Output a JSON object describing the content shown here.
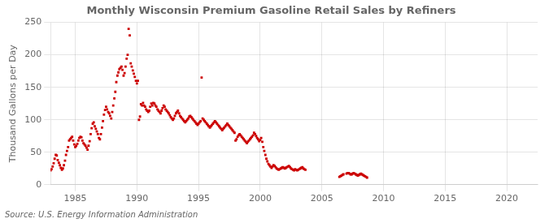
{
  "chart_data": {
    "type": "scatter",
    "title": "Monthly Wisconsin Premium Gasoline Retail Sales by Refiners",
    "y_label": "Thousand Gallons per Day",
    "annotations": [
      "Source: U.S. Energy Information Administration"
    ],
    "color": "#cc0000",
    "marker": "square",
    "grid": true,
    "xlim": [
      1983.0,
      2022.5
    ],
    "ylim": [
      0,
      250
    ],
    "xticks": [
      1985,
      1990,
      1995,
      2000,
      2005,
      2010,
      2015,
      2020
    ],
    "yticks": [
      0,
      50,
      100,
      150,
      200,
      250
    ],
    "x": [
      1983.0,
      1983.08,
      1983.17,
      1983.25,
      1983.33,
      1983.42,
      1983.5,
      1983.58,
      1983.67,
      1983.75,
      1983.83,
      1983.92,
      1984.0,
      1984.08,
      1984.17,
      1984.25,
      1984.33,
      1984.42,
      1984.5,
      1984.58,
      1984.67,
      1984.75,
      1984.83,
      1984.92,
      1985.0,
      1985.08,
      1985.17,
      1985.25,
      1985.33,
      1985.42,
      1985.5,
      1985.58,
      1985.67,
      1985.75,
      1985.83,
      1985.92,
      1986.0,
      1986.08,
      1986.17,
      1986.25,
      1986.33,
      1986.42,
      1986.5,
      1986.58,
      1986.67,
      1986.75,
      1986.83,
      1986.92,
      1987.0,
      1987.08,
      1987.17,
      1987.25,
      1987.33,
      1987.42,
      1987.5,
      1987.58,
      1987.67,
      1987.75,
      1987.83,
      1987.92,
      1988.0,
      1988.08,
      1988.17,
      1988.25,
      1988.33,
      1988.42,
      1988.5,
      1988.58,
      1988.67,
      1988.75,
      1988.83,
      1988.92,
      1989.0,
      1989.08,
      1989.17,
      1989.25,
      1989.33,
      1989.42,
      1989.5,
      1989.58,
      1989.67,
      1989.75,
      1989.83,
      1989.92,
      1990.0,
      1990.08,
      1990.17,
      1990.25,
      1990.33,
      1990.42,
      1990.5,
      1990.58,
      1990.67,
      1990.75,
      1990.83,
      1990.92,
      1991.0,
      1991.08,
      1991.17,
      1991.25,
      1991.33,
      1991.42,
      1991.5,
      1991.58,
      1991.67,
      1991.75,
      1991.83,
      1991.92,
      1992.0,
      1992.08,
      1992.17,
      1992.25,
      1992.33,
      1992.42,
      1992.5,
      1992.58,
      1992.67,
      1992.75,
      1992.83,
      1992.92,
      1993.0,
      1993.08,
      1993.17,
      1993.25,
      1993.33,
      1993.42,
      1993.5,
      1993.58,
      1993.67,
      1993.75,
      1993.83,
      1993.92,
      1994.0,
      1994.08,
      1994.17,
      1994.25,
      1994.33,
      1994.42,
      1994.5,
      1994.58,
      1994.67,
      1994.75,
      1994.83,
      1994.92,
      1995.0,
      1995.08,
      1995.17,
      1995.25,
      1995.33,
      1995.42,
      1995.5,
      1995.58,
      1995.67,
      1995.75,
      1995.83,
      1995.92,
      1996.0,
      1996.08,
      1996.17,
      1996.25,
      1996.33,
      1996.42,
      1996.5,
      1996.58,
      1996.67,
      1996.75,
      1996.83,
      1996.92,
      1997.0,
      1997.08,
      1997.17,
      1997.25,
      1997.33,
      1997.42,
      1997.5,
      1997.58,
      1997.67,
      1997.75,
      1997.83,
      1997.92,
      1998.0,
      1998.08,
      1998.17,
      1998.25,
      1998.33,
      1998.42,
      1998.5,
      1998.58,
      1998.67,
      1998.75,
      1998.83,
      1998.92,
      1999.0,
      1999.08,
      1999.17,
      1999.25,
      1999.33,
      1999.42,
      1999.5,
      1999.58,
      1999.67,
      1999.75,
      1999.83,
      1999.92,
      2000.0,
      2000.08,
      2000.17,
      2000.25,
      2000.33,
      2000.42,
      2000.5,
      2000.58,
      2000.67,
      2000.75,
      2000.83,
      2000.92,
      2001.0,
      2001.08,
      2001.17,
      2001.25,
      2001.33,
      2001.42,
      2001.5,
      2001.58,
      2001.67,
      2001.75,
      2001.83,
      2001.92,
      2002.0,
      2002.08,
      2002.17,
      2002.25,
      2002.33,
      2002.42,
      2002.5,
      2002.58,
      2002.67,
      2002.75,
      2002.83,
      2002.92,
      2003.0,
      2003.08,
      2003.17,
      2003.25,
      2003.33,
      2003.42,
      2003.5,
      2003.58,
      2003.67,
      2006.42,
      2006.5,
      2006.58,
      2006.67,
      2006.75,
      2007.0,
      2007.08,
      2007.17,
      2007.25,
      2007.33,
      2007.42,
      2007.5,
      2007.58,
      2007.67,
      2007.75,
      2007.83,
      2007.92,
      2008.0,
      2008.08,
      2008.17,
      2008.25,
      2008.33,
      2008.42,
      2008.5,
      2008.58,
      2008.67
    ],
    "values": [
      22,
      24,
      28,
      33,
      40,
      46,
      45,
      38,
      34,
      30,
      26,
      23,
      25,
      30,
      37,
      46,
      52,
      58,
      68,
      70,
      72,
      74,
      68,
      62,
      58,
      60,
      63,
      68,
      72,
      74,
      73,
      68,
      64,
      62,
      60,
      57,
      54,
      60,
      67,
      78,
      87,
      94,
      96,
      90,
      86,
      82,
      78,
      72,
      70,
      78,
      88,
      98,
      108,
      115,
      120,
      116,
      112,
      110,
      106,
      102,
      112,
      122,
      133,
      143,
      158,
      168,
      173,
      178,
      180,
      182,
      177,
      168,
      172,
      182,
      194,
      200,
      240,
      230,
      187,
      182,
      176,
      171,
      166,
      160,
      156,
      160,
      100,
      105,
      124,
      122,
      126,
      122,
      120,
      116,
      114,
      112,
      114,
      120,
      125,
      122,
      126,
      125,
      122,
      120,
      116,
      114,
      112,
      110,
      114,
      118,
      122,
      120,
      116,
      114,
      112,
      110,
      107,
      104,
      102,
      100,
      102,
      106,
      110,
      112,
      114,
      110,
      106,
      104,
      102,
      100,
      98,
      96,
      98,
      100,
      102,
      105,
      106,
      104,
      102,
      100,
      98,
      96,
      94,
      92,
      94,
      96,
      98,
      165,
      102,
      100,
      98,
      96,
      94,
      92,
      90,
      88,
      90,
      92,
      94,
      96,
      98,
      96,
      94,
      92,
      90,
      88,
      86,
      84,
      86,
      88,
      90,
      92,
      94,
      92,
      90,
      88,
      86,
      84,
      82,
      80,
      68,
      70,
      74,
      76,
      78,
      76,
      74,
      72,
      70,
      68,
      66,
      64,
      66,
      68,
      70,
      72,
      74,
      76,
      80,
      78,
      75,
      72,
      70,
      67,
      69,
      72,
      66,
      58,
      52,
      46,
      40,
      36,
      32,
      30,
      28,
      26,
      28,
      30,
      29,
      27,
      25,
      24,
      23,
      24,
      25,
      26,
      27,
      26,
      25,
      26,
      27,
      28,
      29,
      27,
      25,
      24,
      23,
      22,
      24,
      23,
      22,
      23,
      24,
      25,
      26,
      27,
      25,
      24,
      23,
      12,
      13,
      14,
      15,
      16,
      17,
      18,
      18,
      17,
      16,
      16,
      17,
      18,
      17,
      16,
      15,
      14,
      15,
      16,
      17,
      16,
      15,
      14,
      13,
      12,
      11
    ]
  }
}
